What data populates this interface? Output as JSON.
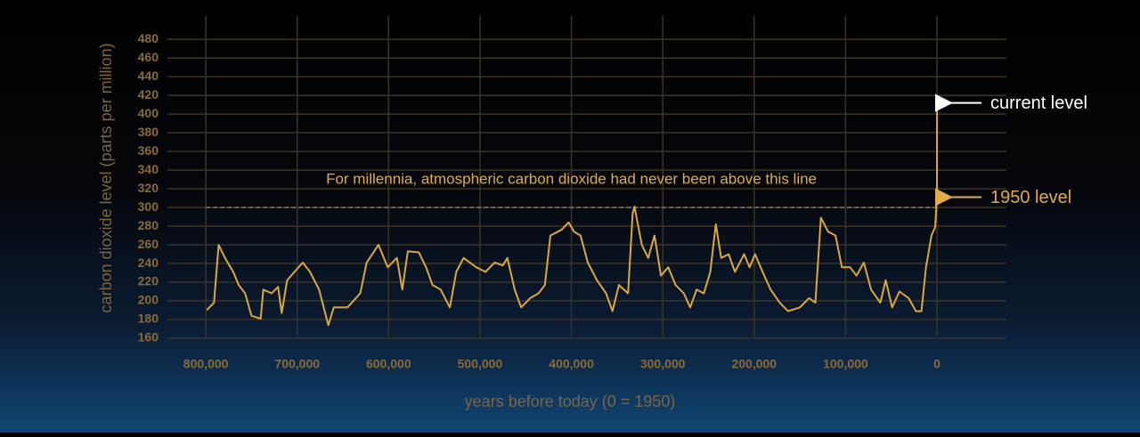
{
  "chart_data": {
    "type": "line",
    "xlabel": "years before today (0 = 1950)",
    "ylabel": "carbon dioxide level (parts per million)",
    "x": [
      799000,
      791000,
      786000,
      779000,
      770000,
      764000,
      757000,
      750000,
      740000,
      737000,
      728000,
      721000,
      717000,
      711000,
      703000,
      694000,
      686000,
      676000,
      666000,
      660000,
      645000,
      631000,
      624000,
      611000,
      601000,
      591000,
      585000,
      579000,
      567000,
      559000,
      552000,
      543000,
      533000,
      526000,
      518000,
      504000,
      494000,
      484000,
      475000,
      470000,
      462000,
      455000,
      445000,
      436000,
      429000,
      423000,
      411000,
      403000,
      397000,
      390000,
      382000,
      372000,
      362000,
      355000,
      348000,
      338000,
      333000,
      331000,
      323000,
      316000,
      309000,
      302000,
      294000,
      286000,
      277000,
      270000,
      263000,
      255000,
      248000,
      242000,
      236000,
      228000,
      221000,
      211000,
      205000,
      199000,
      189000,
      182000,
      172000,
      163000,
      150000,
      140000,
      133000,
      127000,
      119000,
      111000,
      104000,
      95000,
      88000,
      80000,
      72000,
      62000,
      56000,
      49000,
      41000,
      31000,
      23000,
      17000,
      12000,
      6000,
      2000,
      0,
      -70
    ],
    "series": [
      {
        "name": "CO2",
        "color": "#d9a843",
        "values": [
          190,
          198,
          260,
          246,
          231,
          217,
          208,
          184,
          181,
          212,
          208,
          215,
          187,
          222,
          231,
          241,
          231,
          212,
          174,
          193,
          193,
          208,
          241,
          260,
          236,
          246,
          212,
          253,
          252,
          236,
          217,
          212,
          193,
          231,
          246,
          236,
          231,
          241,
          238,
          246,
          212,
          193,
          203,
          208,
          217,
          270,
          276,
          284,
          274,
          270,
          241,
          222,
          208,
          189,
          217,
          208,
          293,
          301,
          260,
          246,
          270,
          227,
          236,
          217,
          208,
          193,
          212,
          208,
          231,
          282,
          246,
          250,
          231,
          250,
          236,
          250,
          227,
          212,
          198,
          189,
          193,
          203,
          198,
          289,
          274,
          270,
          236,
          236,
          227,
          241,
          212,
          198,
          222,
          193,
          210,
          203,
          189,
          189,
          236,
          270,
          279,
          311,
          412
        ]
      }
    ],
    "xlim": [
      842000,
      -76000
    ],
    "ylim": [
      160,
      505
    ],
    "xticks": [
      {
        "value": 800000,
        "label": "800,000"
      },
      {
        "value": 700000,
        "label": "700,000"
      },
      {
        "value": 600000,
        "label": "600,000"
      },
      {
        "value": 500000,
        "label": "500,000"
      },
      {
        "value": 400000,
        "label": "400,000"
      },
      {
        "value": 300000,
        "label": "300,000"
      },
      {
        "value": 200000,
        "label": "200,000"
      },
      {
        "value": 100000,
        "label": "100,000"
      },
      0
    ],
    "yticks": [
      160,
      180,
      200,
      220,
      240,
      260,
      280,
      300,
      320,
      340,
      360,
      380,
      400,
      420,
      440,
      460,
      480
    ],
    "grid": true,
    "reference_line": {
      "value": 300,
      "label": "For millennia, atmospheric carbon dioxide had never been above this line"
    },
    "annotations": [
      {
        "text": "current level",
        "value": 412,
        "color": "#ffffff"
      },
      {
        "text": "1950 level",
        "value": 311,
        "color": "#e0ac48"
      }
    ]
  }
}
